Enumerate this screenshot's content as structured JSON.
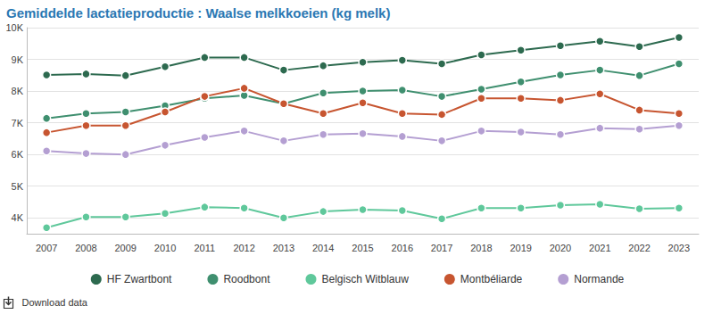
{
  "chart_data": {
    "type": "line",
    "title": "Gemiddelde lactatieproductie : Waalse melkkoeien (kg melk)",
    "annotation": "Download data",
    "categories": [
      "2007",
      "2008",
      "2009",
      "2010",
      "2011",
      "2012",
      "2013",
      "2014",
      "2015",
      "2016",
      "2017",
      "2018",
      "2019",
      "2020",
      "2021",
      "2022",
      "2023"
    ],
    "series": [
      {
        "name": "HF Zwartbont",
        "color": "#2d6a4f",
        "values": [
          8510,
          8540,
          8490,
          8770,
          9060,
          9060,
          8660,
          8800,
          8910,
          8970,
          8860,
          9140,
          9290,
          9430,
          9570,
          9400,
          9690
        ]
      },
      {
        "name": "Roodbont",
        "color": "#3f8f6f",
        "values": [
          7140,
          7290,
          7340,
          7540,
          7770,
          7860,
          7600,
          7940,
          8000,
          8030,
          7830,
          8060,
          8290,
          8510,
          8660,
          8490,
          8860
        ]
      },
      {
        "name": "Belgisch Witblauw",
        "color": "#5fc89b",
        "values": [
          3690,
          4030,
          4030,
          4140,
          4340,
          4310,
          4000,
          4200,
          4260,
          4230,
          3970,
          4310,
          4310,
          4400,
          4430,
          4290,
          4310
        ]
      },
      {
        "name": "Montbéliarde",
        "color": "#c75530",
        "values": [
          6690,
          6910,
          6910,
          7340,
          7830,
          8090,
          7600,
          7290,
          7630,
          7290,
          7260,
          7770,
          7770,
          7710,
          7910,
          7400,
          7290
        ]
      },
      {
        "name": "Normande",
        "color": "#b49fd2",
        "values": [
          6110,
          6030,
          6000,
          6290,
          6540,
          6740,
          6430,
          6630,
          6660,
          6570,
          6430,
          6740,
          6710,
          6630,
          6830,
          6800,
          6910
        ]
      }
    ],
    "ylim": [
      3500,
      10000
    ],
    "yticks": [
      {
        "value": 4000,
        "label": "4K"
      },
      {
        "value": 5000,
        "label": "5K"
      },
      {
        "value": 6000,
        "label": "6K"
      },
      {
        "value": 7000,
        "label": "7K"
      },
      {
        "value": 8000,
        "label": "8K"
      },
      {
        "value": 9000,
        "label": "9K"
      },
      {
        "value": 10000,
        "label": "10K"
      }
    ],
    "grid": true,
    "legend": "bottom",
    "marker": "circle"
  }
}
